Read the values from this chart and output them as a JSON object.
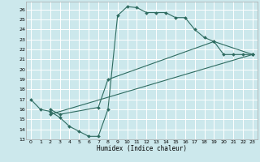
{
  "title": "",
  "xlabel": "Humidex (Indice chaleur)",
  "bg_color": "#cce8ec",
  "grid_color": "#ffffff",
  "line_color": "#2e6b60",
  "xlim": [
    -0.5,
    23.5
  ],
  "ylim": [
    13,
    26.8
  ],
  "xticks": [
    0,
    1,
    2,
    3,
    4,
    5,
    6,
    7,
    8,
    9,
    10,
    11,
    12,
    13,
    14,
    15,
    16,
    17,
    18,
    19,
    20,
    21,
    22,
    23
  ],
  "yticks": [
    13,
    14,
    15,
    16,
    17,
    18,
    19,
    20,
    21,
    22,
    23,
    24,
    25,
    26
  ],
  "curve1_x": [
    0,
    1,
    2,
    3,
    4,
    5,
    6,
    7,
    8,
    9,
    10,
    11,
    12,
    13,
    14,
    15,
    16,
    17,
    18,
    19,
    20,
    21,
    22,
    23
  ],
  "curve1_y": [
    17.0,
    16.0,
    15.8,
    15.2,
    14.3,
    13.8,
    13.3,
    13.3,
    16.0,
    25.4,
    26.3,
    26.2,
    25.7,
    25.7,
    25.7,
    25.2,
    25.2,
    24.0,
    23.2,
    22.8,
    21.5,
    21.5,
    21.5,
    21.5
  ],
  "curve2_x": [
    2,
    3,
    7,
    8,
    19,
    23
  ],
  "curve2_y": [
    16.0,
    15.5,
    16.2,
    19.0,
    22.8,
    21.5
  ],
  "curve3_x": [
    2,
    23
  ],
  "curve3_y": [
    15.5,
    21.5
  ]
}
